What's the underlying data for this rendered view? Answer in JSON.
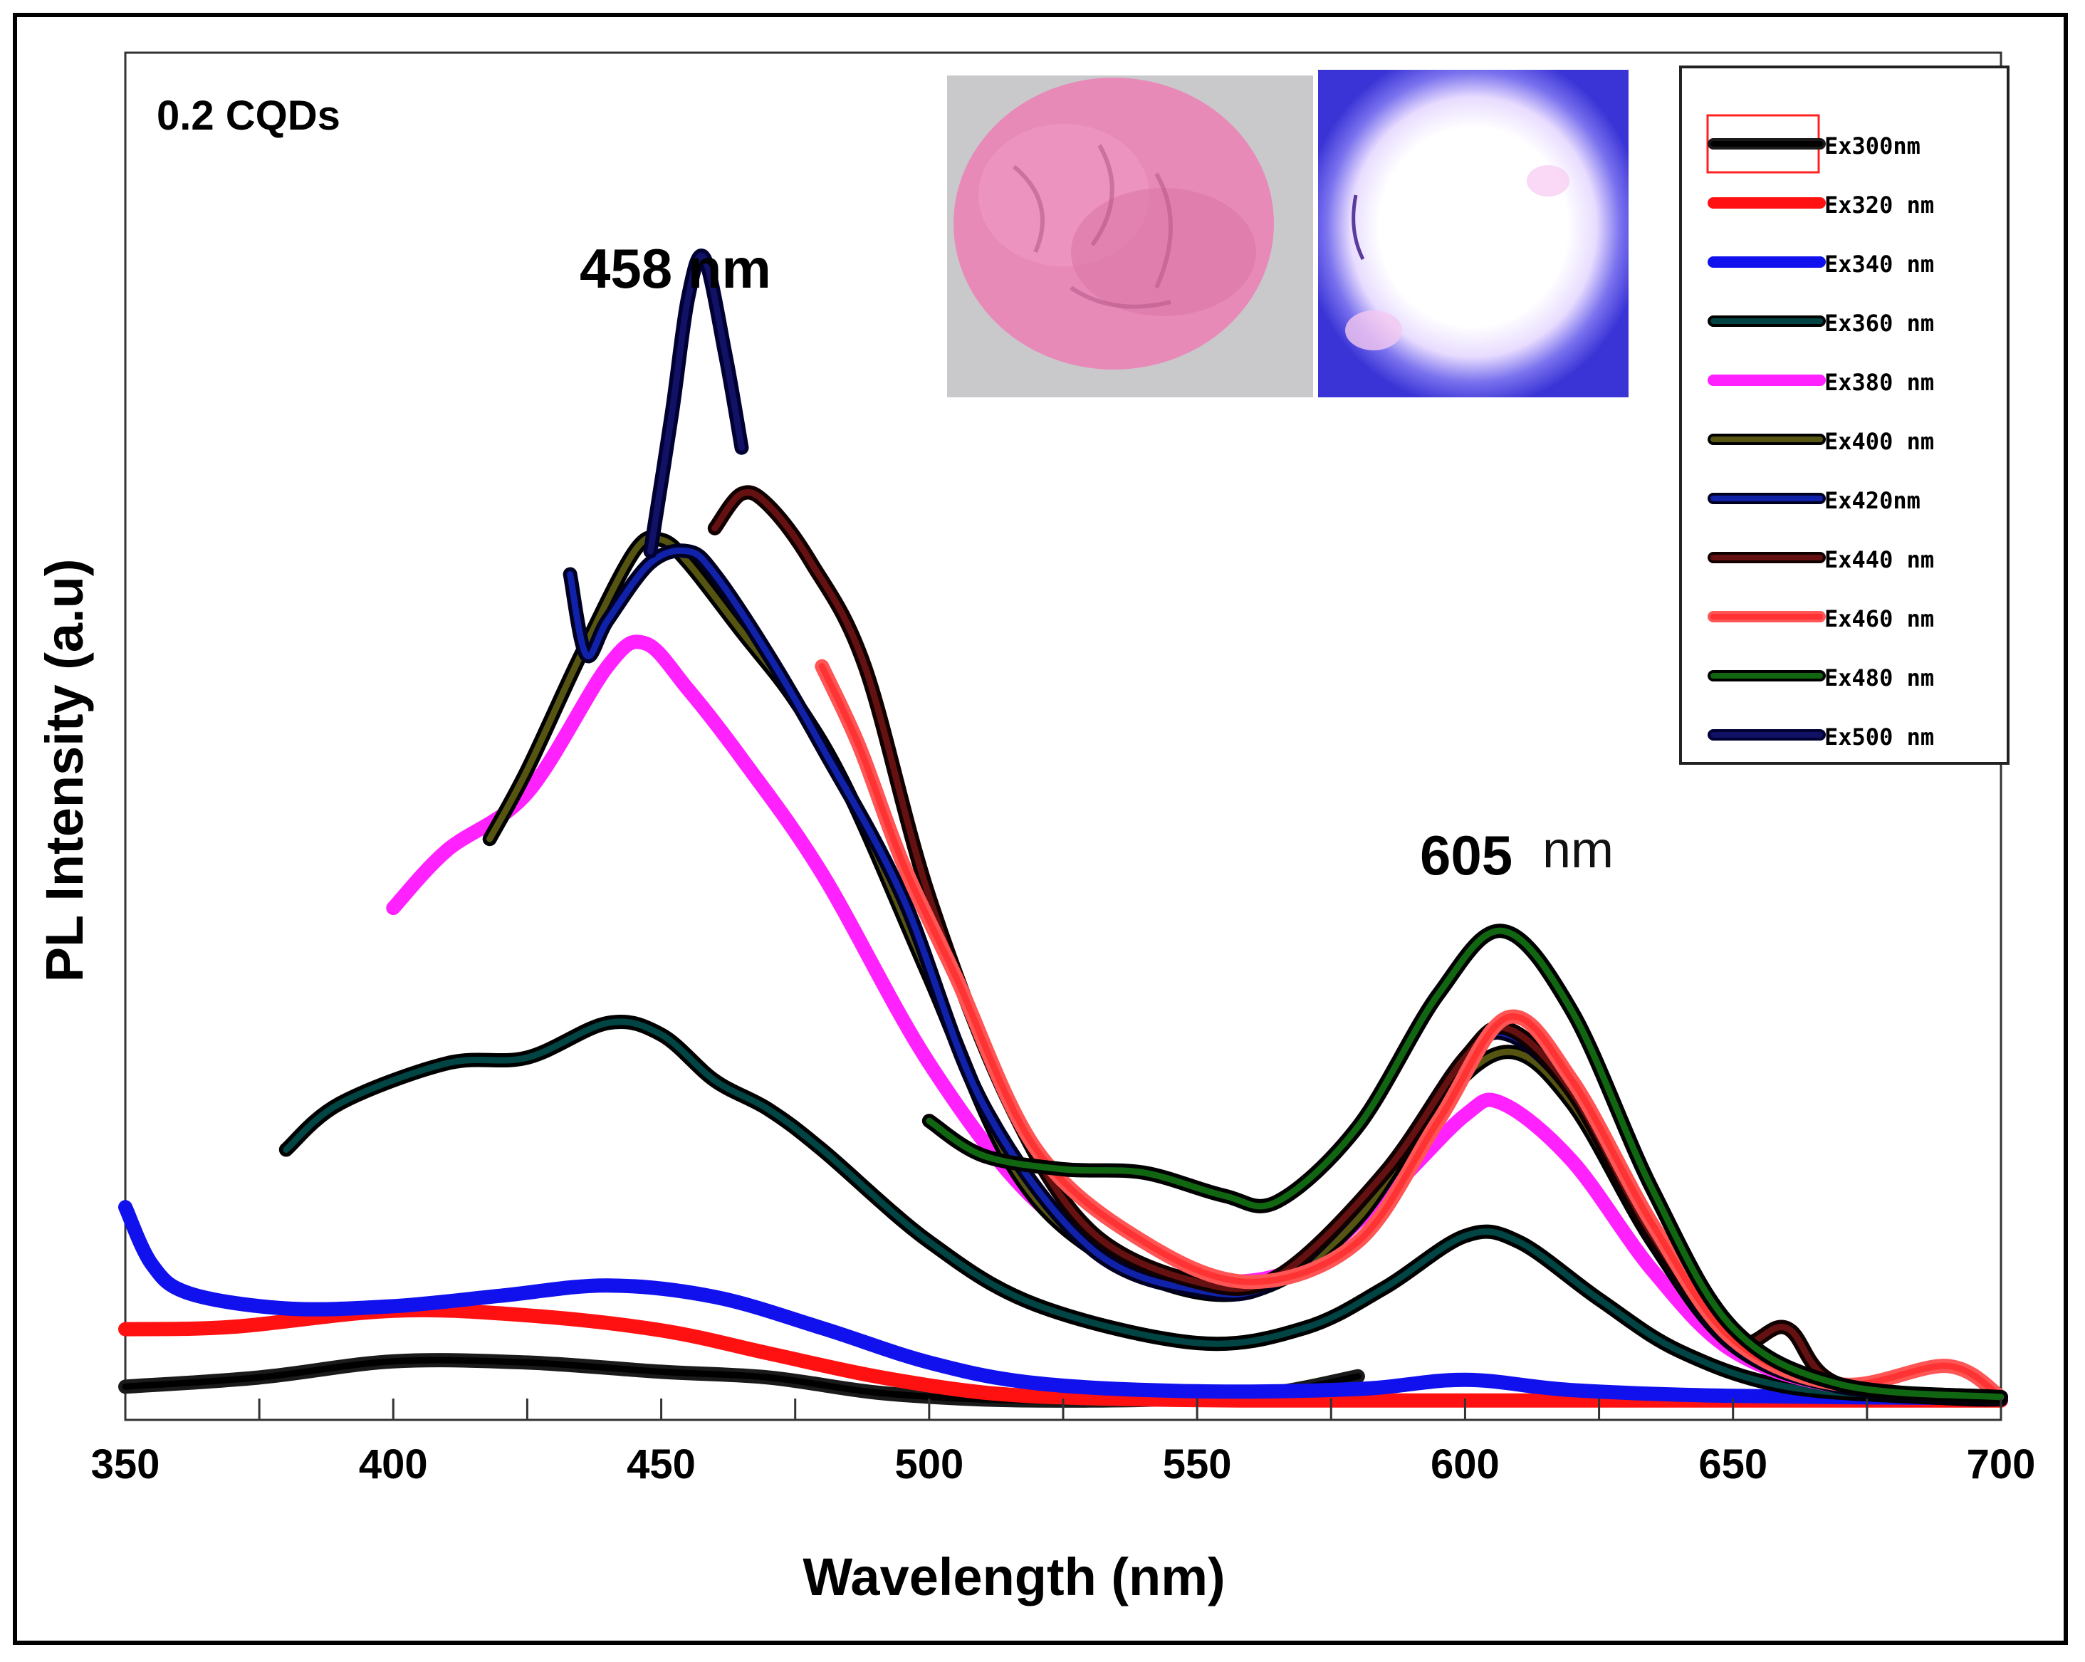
{
  "chart_data": {
    "type": "line",
    "title": "0.2 CQDs",
    "xlabel": "Wavelength (nm)",
    "ylabel": "PL Intensity (a.u)",
    "xlim": [
      350,
      700
    ],
    "ylim": [
      0,
      100
    ],
    "xticks": [
      350,
      400,
      450,
      500,
      550,
      600,
      650,
      700
    ],
    "grid": false,
    "legend_position": "top-right",
    "annotations": [
      {
        "text": "458 nm",
        "x": 458,
        "y": 96
      },
      {
        "text": "605",
        "x": 600,
        "y": 49
      },
      {
        "text": "nm",
        "x": 623,
        "y": 49
      }
    ],
    "series": [
      {
        "name": "Ex300nm",
        "color": "#000000",
        "stroke": "#1a1a1a",
        "x": [
          350,
          375,
          400,
          425,
          450,
          470,
          490,
          510,
          530,
          550,
          565,
          580
        ],
        "y": [
          1.4,
          2.2,
          3.6,
          3.5,
          2.7,
          2.2,
          0.9,
          0.3,
          0.2,
          0.4,
          0.9,
          2.3
        ]
      },
      {
        "name": "Ex320 nm",
        "color": "#ff1111",
        "stroke": "#ff1111",
        "x": [
          350,
          370,
          400,
          425,
          450,
          470,
          490,
          510,
          530,
          560,
          600,
          650,
          700
        ],
        "y": [
          6.4,
          6.6,
          8.0,
          7.6,
          6.3,
          4.3,
          2.3,
          0.9,
          0.4,
          0.2,
          0.2,
          0.2,
          0.2
        ]
      },
      {
        "name": "Ex340 nm",
        "color": "#1111ee",
        "stroke": "#1111ee",
        "x": [
          350,
          355,
          362,
          380,
          400,
          420,
          440,
          460,
          480,
          500,
          520,
          550,
          580,
          600,
          620,
          650,
          700
        ],
        "y": [
          17,
          12,
          9.5,
          8.2,
          8.4,
          9.3,
          10.2,
          9.2,
          6.5,
          3.5,
          1.7,
          1.0,
          1.2,
          2.0,
          1.1,
          0.6,
          0.4
        ]
      },
      {
        "name": "Ex360 nm",
        "color": "#004444",
        "stroke": "#000000",
        "x": [
          380,
          390,
          410,
          425,
          440,
          450,
          460,
          470,
          480,
          500,
          520,
          550,
          570,
          585,
          600,
          610,
          625,
          640,
          660,
          690,
          700
        ],
        "y": [
          22,
          26,
          29.5,
          30,
          33,
          32,
          28,
          25.5,
          22,
          14,
          8.5,
          5.2,
          6.5,
          10,
          14.5,
          14,
          9,
          4.5,
          1.4,
          0.4,
          0.3
        ]
      },
      {
        "name": "Ex380 nm",
        "color": "#ff22ff",
        "stroke": "#ff22ff",
        "x": [
          400,
          410,
          425,
          440,
          447,
          455,
          465,
          480,
          500,
          520,
          540,
          555,
          570,
          585,
          600,
          607,
          620,
          635,
          650,
          670,
          700
        ],
        "y": [
          43,
          48,
          53,
          64,
          66,
          62,
          56,
          46,
          29.5,
          17.5,
          12,
          10.5,
          12,
          18,
          25,
          26,
          21,
          11.5,
          4.5,
          1.4,
          0.4
        ]
      },
      {
        "name": "Ex400 nm",
        "color": "#555511",
        "stroke": "#000000",
        "x": [
          418,
          425,
          435,
          445,
          450,
          455,
          465,
          475,
          485,
          500,
          515,
          530,
          550,
          565,
          580,
          595,
          608,
          620,
          635,
          650,
          670,
          700
        ],
        "y": [
          49,
          55,
          65,
          74,
          75,
          73,
          67,
          61,
          53,
          37,
          21,
          13.5,
          9.6,
          10.5,
          16,
          26,
          30.5,
          26,
          14,
          5,
          1.4,
          0.4
        ]
      },
      {
        "name": "Ex420nm",
        "color": "#1122aa",
        "stroke": "#000022",
        "x": [
          433,
          436,
          440,
          448,
          455,
          460,
          470,
          480,
          495,
          510,
          530,
          550,
          565,
          585,
          600,
          608,
          620,
          635,
          650,
          670,
          700
        ],
        "y": [
          72,
          65,
          68,
          73,
          74,
          72,
          65,
          57,
          44,
          26,
          13.5,
          9.8,
          10.7,
          20,
          30,
          32,
          27,
          14.5,
          5.2,
          1.4,
          0.4
        ]
      },
      {
        "name": "Ex440 nm",
        "color": "#661111",
        "stroke": "#110000",
        "x": [
          460,
          465,
          470,
          478,
          488,
          500,
          515,
          530,
          550,
          565,
          585,
          600,
          608,
          620,
          635,
          650,
          660,
          670,
          700
        ],
        "y": [
          76,
          79,
          78,
          73,
          64,
          44,
          26,
          15,
          10.5,
          11,
          20,
          30,
          32.5,
          27,
          14.5,
          5.5,
          6.5,
          1.6,
          0.5
        ]
      },
      {
        "name": "Ex460 nm",
        "color": "#ff3333",
        "stroke": "#ff5555",
        "x": [
          480,
          487,
          495,
          505,
          520,
          540,
          560,
          580,
          595,
          608,
          620,
          635,
          650,
          670,
          690,
          700
        ],
        "y": [
          64,
          57,
          47,
          37,
          22,
          14,
          10.5,
          14,
          24.5,
          33.5,
          28,
          15.5,
          5.5,
          1.6,
          3.2,
          0.5
        ]
      },
      {
        "name": "Ex480 nm",
        "color": "#116611",
        "stroke": "#000000",
        "x": [
          500,
          510,
          525,
          540,
          555,
          565,
          580,
          595,
          607,
          620,
          635,
          650,
          670,
          700
        ],
        "y": [
          24.5,
          21.5,
          20.3,
          20,
          18,
          17.5,
          24,
          35.5,
          41,
          34,
          18.5,
          6.5,
          1.6,
          0.5
        ]
      },
      {
        "name": "Ex500 nm",
        "color": "#111166",
        "stroke": "#000033",
        "x": [
          448,
          452,
          455,
          458,
          462,
          465
        ],
        "y": [
          74,
          86,
          96,
          99.5,
          91,
          83
        ]
      }
    ]
  }
}
